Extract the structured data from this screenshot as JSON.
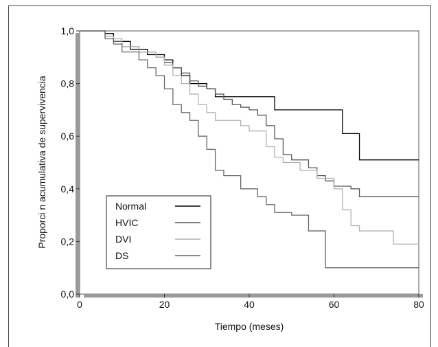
{
  "chart_data": {
    "type": "line",
    "step": true,
    "xlabel": "Tiempo (meses)",
    "ylabel": "Proporci n acumulativa de supervivencia",
    "xlim": [
      0,
      80
    ],
    "ylim": [
      0,
      1.0
    ],
    "x_ticks": [
      "0",
      "20",
      "40",
      "60",
      "80"
    ],
    "y_ticks": [
      "0,0",
      "0,2",
      "0,4",
      "0,6",
      "0,8",
      "1,0"
    ],
    "grid": false,
    "legend_position": "bottom-left",
    "series": [
      {
        "name": "Normal",
        "color": "#000000",
        "points": [
          [
            0,
            1.0
          ],
          [
            6,
            0.99
          ],
          [
            8,
            0.96
          ],
          [
            12,
            0.93
          ],
          [
            16,
            0.91
          ],
          [
            20,
            0.89
          ],
          [
            22,
            0.86
          ],
          [
            24,
            0.83
          ],
          [
            26,
            0.8
          ],
          [
            30,
            0.78
          ],
          [
            32,
            0.75
          ],
          [
            38,
            0.75
          ],
          [
            46,
            0.7
          ],
          [
            58,
            0.7
          ],
          [
            62,
            0.61
          ],
          [
            66,
            0.51
          ],
          [
            80,
            0.51
          ]
        ]
      },
      {
        "name": "HVIC",
        "color": "#555555",
        "points": [
          [
            0,
            1.0
          ],
          [
            6,
            0.98
          ],
          [
            8,
            0.96
          ],
          [
            10,
            0.94
          ],
          [
            14,
            0.92
          ],
          [
            18,
            0.9
          ],
          [
            20,
            0.88
          ],
          [
            22,
            0.86
          ],
          [
            24,
            0.84
          ],
          [
            26,
            0.81
          ],
          [
            28,
            0.79
          ],
          [
            30,
            0.78
          ],
          [
            32,
            0.76
          ],
          [
            34,
            0.74
          ],
          [
            36,
            0.72
          ],
          [
            38,
            0.71
          ],
          [
            40,
            0.7
          ],
          [
            42,
            0.68
          ],
          [
            44,
            0.64
          ],
          [
            46,
            0.59
          ],
          [
            48,
            0.53
          ],
          [
            50,
            0.51
          ],
          [
            54,
            0.48
          ],
          [
            56,
            0.45
          ],
          [
            58,
            0.43
          ],
          [
            60,
            0.41
          ],
          [
            64,
            0.4
          ],
          [
            66,
            0.37
          ],
          [
            80,
            0.37
          ]
        ]
      },
      {
        "name": "DVI",
        "color": "#b0b0b0",
        "points": [
          [
            0,
            1.0
          ],
          [
            6,
            0.98
          ],
          [
            8,
            0.97
          ],
          [
            10,
            0.94
          ],
          [
            14,
            0.92
          ],
          [
            18,
            0.9
          ],
          [
            20,
            0.87
          ],
          [
            22,
            0.83
          ],
          [
            24,
            0.8
          ],
          [
            26,
            0.76
          ],
          [
            28,
            0.72
          ],
          [
            30,
            0.69
          ],
          [
            32,
            0.66
          ],
          [
            36,
            0.66
          ],
          [
            38,
            0.64
          ],
          [
            40,
            0.62
          ],
          [
            44,
            0.56
          ],
          [
            46,
            0.52
          ],
          [
            48,
            0.5
          ],
          [
            52,
            0.47
          ],
          [
            56,
            0.44
          ],
          [
            60,
            0.4
          ],
          [
            62,
            0.32
          ],
          [
            64,
            0.26
          ],
          [
            66,
            0.24
          ],
          [
            72,
            0.24
          ],
          [
            74,
            0.19
          ],
          [
            80,
            0.19
          ]
        ]
      },
      {
        "name": "DS",
        "color": "#666666",
        "points": [
          [
            0,
            1.0
          ],
          [
            6,
            0.97
          ],
          [
            8,
            0.95
          ],
          [
            10,
            0.92
          ],
          [
            14,
            0.89
          ],
          [
            16,
            0.86
          ],
          [
            18,
            0.83
          ],
          [
            20,
            0.78
          ],
          [
            22,
            0.72
          ],
          [
            24,
            0.69
          ],
          [
            26,
            0.66
          ],
          [
            28,
            0.6
          ],
          [
            30,
            0.55
          ],
          [
            32,
            0.47
          ],
          [
            34,
            0.45
          ],
          [
            38,
            0.4
          ],
          [
            42,
            0.37
          ],
          [
            44,
            0.34
          ],
          [
            46,
            0.31
          ],
          [
            50,
            0.3
          ],
          [
            54,
            0.24
          ],
          [
            58,
            0.1
          ],
          [
            80,
            0.1
          ]
        ]
      }
    ]
  }
}
